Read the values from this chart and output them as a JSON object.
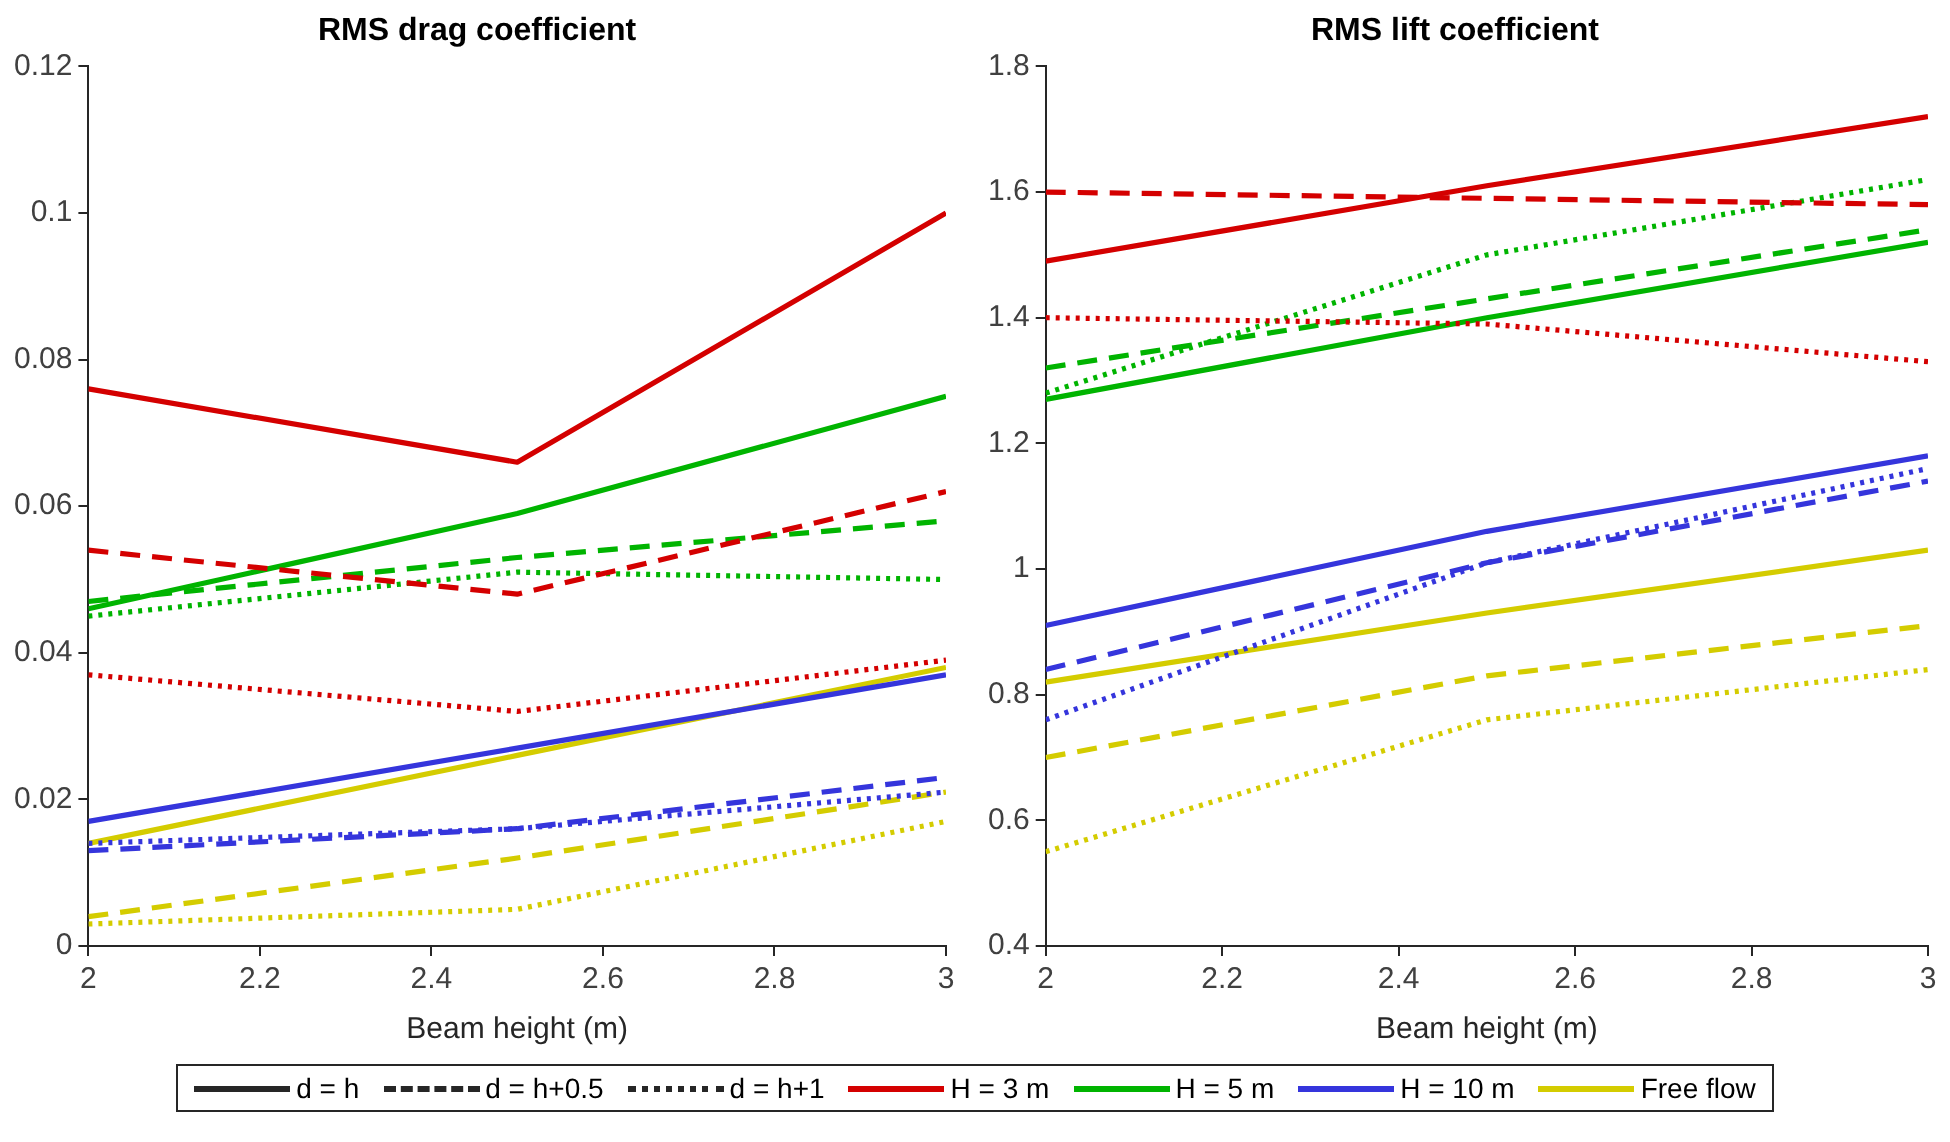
{
  "chart_data": [
    {
      "type": "line",
      "title": "RMS drag coefficient",
      "xlabel": "Beam height (m)",
      "x": [
        2,
        2.5,
        3
      ],
      "xlim": [
        2,
        3
      ],
      "xticks": [
        2,
        2.2,
        2.4,
        2.6,
        2.8,
        3
      ],
      "ylim": [
        0,
        0.12
      ],
      "yticks": [
        0,
        0.02,
        0.04,
        0.06,
        0.08,
        0.1,
        0.12
      ],
      "marker": "none",
      "legend": "bottom",
      "series": [
        {
          "name": "d = h",
          "color": "#262626",
          "line_style": "solid",
          "values": [
            null,
            null,
            null
          ]
        },
        {
          "name": "d = h+0.5",
          "color": "#262626",
          "line_style": "dashed",
          "values": [
            null,
            null,
            null
          ]
        },
        {
          "name": "d = h+1",
          "color": "#262626",
          "line_style": "dotted",
          "values": [
            null,
            null,
            null
          ]
        },
        {
          "name": "H = 3 m",
          "color": "#d40000",
          "line_style": "solid",
          "values": [
            null,
            null,
            null
          ]
        },
        {
          "name": "H = 5 m",
          "color": "#00b400",
          "line_style": "solid",
          "values": [
            null,
            null,
            null
          ]
        },
        {
          "name": "H = 10 m",
          "color": "#3535dc",
          "line_style": "solid",
          "values": [
            null,
            null,
            null
          ]
        },
        {
          "name": "Free flow",
          "color": "#d4cc00",
          "line_style": "solid",
          "values": [
            null,
            null,
            null
          ]
        },
        {
          "color": "#d40000",
          "line_style": "solid",
          "values": [
            0.076,
            0.066,
            0.1
          ]
        },
        {
          "color": "#d40000",
          "line_style": "dashed",
          "values": [
            0.054,
            0.048,
            0.062
          ]
        },
        {
          "color": "#d40000",
          "line_style": "dotted",
          "values": [
            0.037,
            0.032,
            0.039
          ]
        },
        {
          "color": "#00b400",
          "line_style": "solid",
          "values": [
            0.046,
            0.059,
            0.075
          ]
        },
        {
          "color": "#00b400",
          "line_style": "dashed",
          "values": [
            0.047,
            0.053,
            0.058
          ]
        },
        {
          "color": "#00b400",
          "line_style": "dotted",
          "values": [
            0.045,
            0.051,
            0.05
          ]
        },
        {
          "color": "#3535dc",
          "line_style": "solid",
          "values": [
            0.017,
            0.027,
            0.037
          ]
        },
        {
          "color": "#3535dc",
          "line_style": "dashed",
          "values": [
            0.013,
            0.016,
            0.023
          ]
        },
        {
          "color": "#3535dc",
          "line_style": "dotted",
          "values": [
            0.014,
            0.016,
            0.021
          ]
        },
        {
          "color": "#d4cc00",
          "line_style": "solid",
          "values": [
            0.014,
            0.026,
            0.038
          ]
        },
        {
          "color": "#d4cc00",
          "line_style": "dashed",
          "values": [
            0.004,
            0.012,
            0.021
          ]
        },
        {
          "color": "#d4cc00",
          "line_style": "dotted",
          "values": [
            0.003,
            0.005,
            0.017
          ]
        }
      ]
    },
    {
      "type": "line",
      "title": "RMS lift coefficient",
      "xlabel": "Beam height (m)",
      "x": [
        2,
        2.5,
        3
      ],
      "xlim": [
        2,
        3
      ],
      "xticks": [
        2,
        2.2,
        2.4,
        2.6,
        2.8,
        3
      ],
      "ylim": [
        0.4,
        1.8
      ],
      "yticks": [
        0.4,
        0.6,
        0.8,
        1,
        1.2,
        1.4,
        1.6,
        1.8
      ],
      "marker": "none",
      "series": [
        {
          "color": "#d40000",
          "line_style": "solid",
          "values": [
            1.49,
            1.61,
            1.72
          ]
        },
        {
          "color": "#d40000",
          "line_style": "dashed",
          "values": [
            1.6,
            1.59,
            1.58
          ]
        },
        {
          "color": "#d40000",
          "line_style": "dotted",
          "values": [
            1.4,
            1.39,
            1.33
          ]
        },
        {
          "color": "#00b400",
          "line_style": "solid",
          "values": [
            1.27,
            1.4,
            1.52
          ]
        },
        {
          "color": "#00b400",
          "line_style": "dashed",
          "values": [
            1.32,
            1.43,
            1.54
          ]
        },
        {
          "color": "#00b400",
          "line_style": "dotted",
          "values": [
            1.28,
            1.5,
            1.62
          ]
        },
        {
          "color": "#3535dc",
          "line_style": "solid",
          "values": [
            0.91,
            1.06,
            1.18
          ]
        },
        {
          "color": "#3535dc",
          "line_style": "dashed",
          "values": [
            0.84,
            1.01,
            1.14
          ]
        },
        {
          "color": "#3535dc",
          "line_style": "dotted",
          "values": [
            0.76,
            1.01,
            1.16
          ]
        },
        {
          "color": "#d4cc00",
          "line_style": "solid",
          "values": [
            0.82,
            0.93,
            1.03
          ]
        },
        {
          "color": "#d4cc00",
          "line_style": "dashed",
          "values": [
            0.7,
            0.83,
            0.91
          ]
        },
        {
          "color": "#d4cc00",
          "line_style": "dotted",
          "values": [
            0.55,
            0.76,
            0.84
          ]
        }
      ]
    }
  ]
}
